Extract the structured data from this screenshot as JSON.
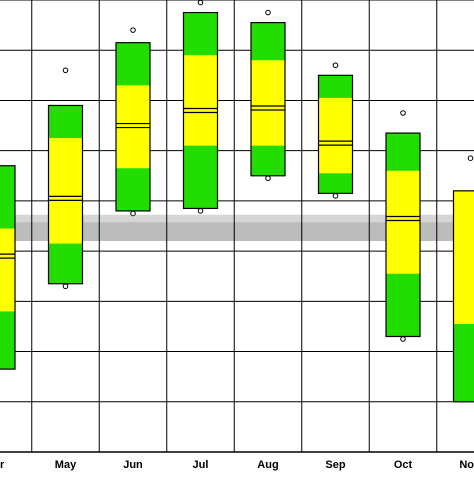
{
  "chart_data": {
    "type": "boxplot",
    "title": "",
    "xlabel": "",
    "ylabel": "",
    "grid": true,
    "y_axis_labels_visible": false,
    "categories": [
      "Apr",
      "May",
      "Jun",
      "Jul",
      "Aug",
      "Sep",
      "Oct",
      "Nov"
    ],
    "tick_labels_visible": [
      "r",
      "May",
      "Jun",
      "Jul",
      "Aug",
      "Sep",
      "Oct",
      "No"
    ],
    "note": "",
    "reference_band": {
      "outer": [
        9.45,
        8.88
      ],
      "inner": [
        9.15,
        8.88
      ]
    },
    "boxes": [
      {
        "category": "Apr",
        "min_marker": null,
        "max_marker": null,
        "low": 3.3,
        "q1": 5.6,
        "median": 7.8,
        "q3": 8.9,
        "high": 11.4
      },
      {
        "category": "May",
        "min_marker": 6.6,
        "max_marker": 15.2,
        "low": 6.7,
        "q1": 8.3,
        "median": 10.1,
        "q3": 12.5,
        "high": 13.8
      },
      {
        "category": "Jun",
        "min_marker": 9.5,
        "max_marker": 16.8,
        "low": 9.6,
        "q1": 11.3,
        "median": 13.0,
        "q3": 14.6,
        "high": 16.3
      },
      {
        "category": "Jul",
        "min_marker": 9.6,
        "max_marker": 17.9,
        "low": 9.7,
        "q1": 12.2,
        "median": 13.6,
        "q3": 15.8,
        "high": 17.5
      },
      {
        "category": "Aug",
        "min_marker": 10.9,
        "max_marker": 17.5,
        "low": 11.0,
        "q1": 12.2,
        "median": 13.7,
        "q3": 15.6,
        "high": 17.1
      },
      {
        "category": "Sep",
        "min_marker": 10.2,
        "max_marker": 15.4,
        "low": 10.3,
        "q1": 11.1,
        "median": 12.3,
        "q3": 14.1,
        "high": 15.0
      },
      {
        "category": "Oct",
        "min_marker": 4.5,
        "max_marker": 13.5,
        "low": 4.6,
        "q1": 7.1,
        "median": 9.3,
        "q3": 11.2,
        "high": 12.7
      },
      {
        "category": "Nov",
        "min_marker": null,
        "max_marker": 11.7,
        "low": 2.0,
        "q1": 5.1,
        "median": null,
        "q3": null,
        "high": 10.4
      }
    ],
    "colors": {
      "outer": "#22dd00",
      "inner": "#ffff00",
      "border": "#000000",
      "band_outer": "#d6d6d6",
      "band_inner": "#bcbcbc",
      "grid": "#000000",
      "background": "#ffffff"
    }
  }
}
